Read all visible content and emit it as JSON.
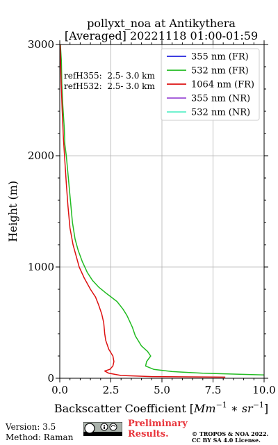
{
  "chart_data": {
    "type": "line",
    "title_line1": "pollyxt_noa at Antikythera",
    "title_line2": "[Averaged] 20221118 01:00-01:59",
    "xlabel_text": "Backscatter Coefficient [",
    "xlabel_math": "Mm",
    "xlabel_exp1": "−1",
    "xlabel_mid": " ∗ ",
    "xlabel_math2": "sr",
    "xlabel_exp2": "−1",
    "xlabel_end": "]",
    "ylabel": "Height (m)",
    "xlim": [
      0,
      10
    ],
    "ylim": [
      0,
      3000
    ],
    "xticks": [
      0,
      2.5,
      5,
      7.5,
      10
    ],
    "xtick_labels": [
      "0.0",
      "2.5",
      "5.0",
      "7.5",
      "10.0"
    ],
    "yticks": [
      0,
      1000,
      2000,
      3000
    ],
    "ytick_labels": [
      "0",
      "1000",
      "2000",
      "3000"
    ],
    "grid": true,
    "legend_position": "top-right",
    "annotations": [
      "refH355:  2.5- 3.0 km",
      "refH532:  2.5- 3.0 km"
    ],
    "series": [
      {
        "name": "355 nm (FR)",
        "color": "#2222dd",
        "points": []
      },
      {
        "name": "532 nm (FR)",
        "color": "#22bb22",
        "points": [
          [
            10.0,
            30
          ],
          [
            7.0,
            45
          ],
          [
            5.5,
            60
          ],
          [
            4.6,
            80
          ],
          [
            4.2,
            110
          ],
          [
            4.25,
            150
          ],
          [
            4.45,
            200
          ],
          [
            4.3,
            240
          ],
          [
            4.0,
            290
          ],
          [
            3.7,
            380
          ],
          [
            3.55,
            460
          ],
          [
            3.3,
            560
          ],
          [
            3.1,
            620
          ],
          [
            2.8,
            690
          ],
          [
            2.3,
            760
          ],
          [
            1.9,
            820
          ],
          [
            1.6,
            880
          ],
          [
            1.35,
            950
          ],
          [
            1.1,
            1050
          ],
          [
            0.9,
            1150
          ],
          [
            0.75,
            1250
          ],
          [
            0.62,
            1400
          ],
          [
            0.52,
            1600
          ],
          [
            0.42,
            1800
          ],
          [
            0.32,
            2000
          ],
          [
            0.25,
            2100
          ],
          [
            0.22,
            2250
          ],
          [
            0.15,
            2450
          ],
          [
            0.1,
            2650
          ],
          [
            0.08,
            2850
          ],
          [
            0.03,
            3000
          ]
        ]
      },
      {
        "name": "1064 nm (FR)",
        "color": "#dd1111",
        "points": [
          [
            8.1,
            10
          ],
          [
            4.5,
            15
          ],
          [
            3.0,
            25
          ],
          [
            2.4,
            45
          ],
          [
            2.2,
            65
          ],
          [
            2.45,
            80
          ],
          [
            2.6,
            110
          ],
          [
            2.65,
            150
          ],
          [
            2.6,
            200
          ],
          [
            2.4,
            260
          ],
          [
            2.25,
            340
          ],
          [
            2.2,
            400
          ],
          [
            2.15,
            500
          ],
          [
            2.05,
            580
          ],
          [
            1.9,
            660
          ],
          [
            1.75,
            730
          ],
          [
            1.5,
            800
          ],
          [
            1.2,
            900
          ],
          [
            0.95,
            1000
          ],
          [
            0.8,
            1100
          ],
          [
            0.65,
            1200
          ],
          [
            0.5,
            1350
          ],
          [
            0.4,
            1550
          ],
          [
            0.32,
            1750
          ],
          [
            0.25,
            1950
          ],
          [
            0.18,
            2150
          ],
          [
            0.12,
            2400
          ],
          [
            0.07,
            2650
          ],
          [
            0.04,
            2850
          ],
          [
            0.02,
            3000
          ]
        ]
      },
      {
        "name": "355 nm (NR)",
        "color": "#9b4dd6",
        "points": []
      },
      {
        "name": "532 nm (NR)",
        "color": "#5cf0c8",
        "points": []
      }
    ]
  },
  "footer": {
    "version": "Version: 3.5",
    "method": "Method: Raman",
    "preliminary_line1": "Preliminary",
    "preliminary_line2": "Results.",
    "copyright_line1": "© TROPOS & NOA 2022.",
    "copyright_line2": "CC BY SA 4.0 License."
  }
}
